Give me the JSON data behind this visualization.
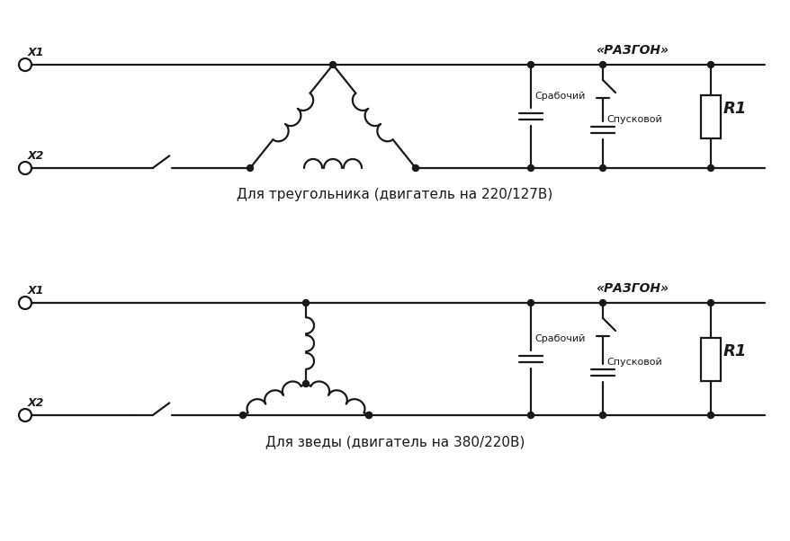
{
  "bg_color": "#ffffff",
  "line_color": "#1a1a1a",
  "lw": 1.6,
  "title1": "Для треугольника (двигатель на 220/127В)",
  "title2": "Для зведы (двигатель на 380/220В)",
  "label_razgon": "«РАЗГОН»",
  "label_rabochiy": "Срабочий",
  "label_spuskovoy": "Спусковой",
  "label_R1": "R1",
  "label_X1": "X1",
  "label_X2": "X2"
}
